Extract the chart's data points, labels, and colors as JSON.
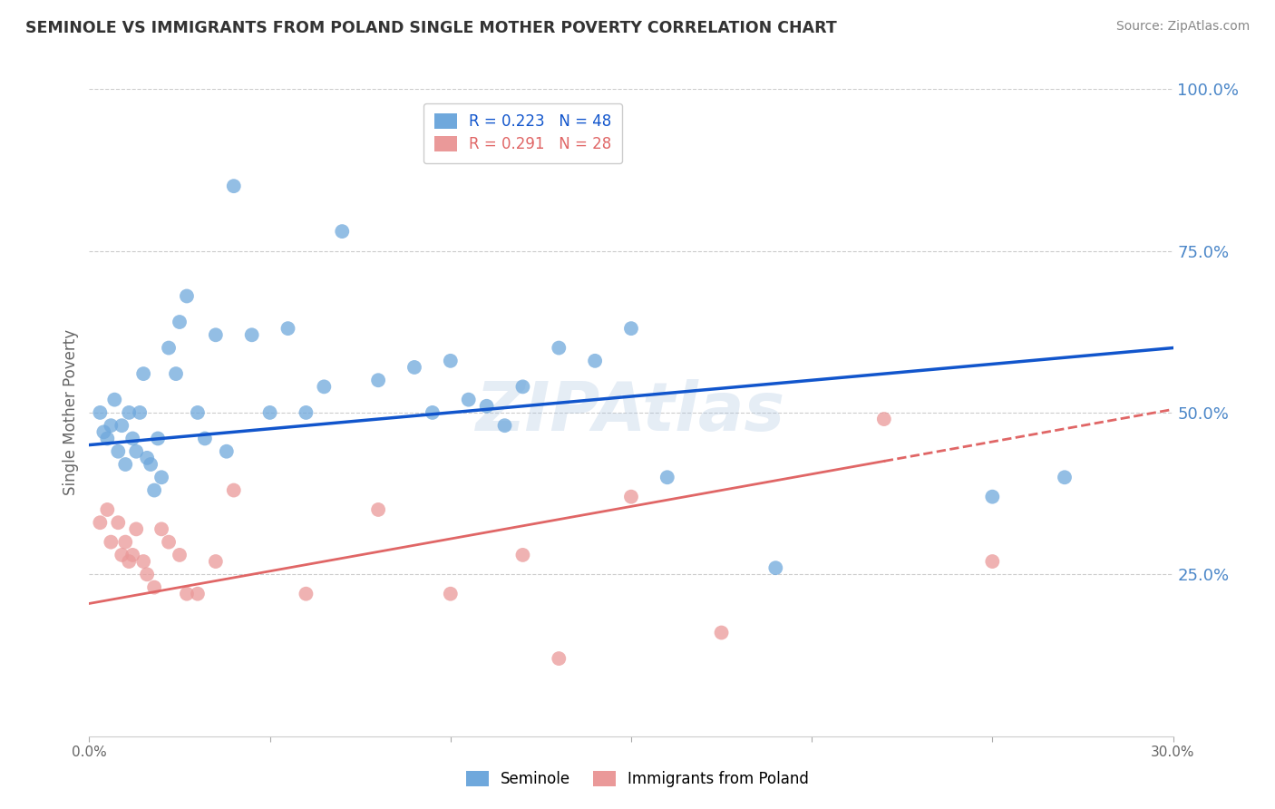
{
  "title": "SEMINOLE VS IMMIGRANTS FROM POLAND SINGLE MOTHER POVERTY CORRELATION CHART",
  "source": "Source: ZipAtlas.com",
  "ylabel": "Single Mother Poverty",
  "legend_bottom_labels": [
    "Seminole",
    "Immigrants from Poland"
  ],
  "R_seminole": 0.223,
  "N_seminole": 48,
  "R_poland": 0.291,
  "N_poland": 28,
  "xlim": [
    0.0,
    0.3
  ],
  "ylim": [
    0.0,
    1.0
  ],
  "xticks": [
    0.0,
    0.05,
    0.1,
    0.15,
    0.2,
    0.25,
    0.3
  ],
  "xticklabels": [
    "0.0%",
    "",
    "",
    "",
    "",
    "",
    "30.0%"
  ],
  "yticks_right": [
    0.0,
    0.25,
    0.5,
    0.75,
    1.0
  ],
  "ytick_right_labels": [
    "",
    "25.0%",
    "50.0%",
    "75.0%",
    "100.0%"
  ],
  "blue_color": "#6fa8dc",
  "pink_color": "#ea9999",
  "blue_line_color": "#1155cc",
  "pink_line_color": "#e06666",
  "right_axis_color": "#4a86c8",
  "watermark": "ZIPAtlas",
  "seminole_x": [
    0.003,
    0.004,
    0.005,
    0.006,
    0.007,
    0.008,
    0.009,
    0.01,
    0.011,
    0.012,
    0.013,
    0.014,
    0.015,
    0.016,
    0.017,
    0.018,
    0.019,
    0.02,
    0.022,
    0.024,
    0.025,
    0.027,
    0.03,
    0.032,
    0.035,
    0.038,
    0.04,
    0.045,
    0.05,
    0.055,
    0.06,
    0.065,
    0.07,
    0.08,
    0.09,
    0.095,
    0.1,
    0.105,
    0.11,
    0.115,
    0.12,
    0.13,
    0.14,
    0.15,
    0.16,
    0.19,
    0.25,
    0.27
  ],
  "seminole_y": [
    0.5,
    0.47,
    0.46,
    0.48,
    0.52,
    0.44,
    0.48,
    0.42,
    0.5,
    0.46,
    0.44,
    0.5,
    0.56,
    0.43,
    0.42,
    0.38,
    0.46,
    0.4,
    0.6,
    0.56,
    0.64,
    0.68,
    0.5,
    0.46,
    0.62,
    0.44,
    0.85,
    0.62,
    0.5,
    0.63,
    0.5,
    0.54,
    0.78,
    0.55,
    0.57,
    0.5,
    0.58,
    0.52,
    0.51,
    0.48,
    0.54,
    0.6,
    0.58,
    0.63,
    0.4,
    0.26,
    0.37,
    0.4
  ],
  "poland_x": [
    0.003,
    0.005,
    0.006,
    0.008,
    0.009,
    0.01,
    0.011,
    0.012,
    0.013,
    0.015,
    0.016,
    0.018,
    0.02,
    0.022,
    0.025,
    0.027,
    0.03,
    0.035,
    0.04,
    0.06,
    0.08,
    0.1,
    0.12,
    0.13,
    0.15,
    0.175,
    0.22,
    0.25
  ],
  "poland_y": [
    0.33,
    0.35,
    0.3,
    0.33,
    0.28,
    0.3,
    0.27,
    0.28,
    0.32,
    0.27,
    0.25,
    0.23,
    0.32,
    0.3,
    0.28,
    0.22,
    0.22,
    0.27,
    0.38,
    0.22,
    0.35,
    0.22,
    0.28,
    0.12,
    0.37,
    0.16,
    0.49,
    0.27
  ],
  "background_color": "#ffffff",
  "grid_color": "#cccccc"
}
